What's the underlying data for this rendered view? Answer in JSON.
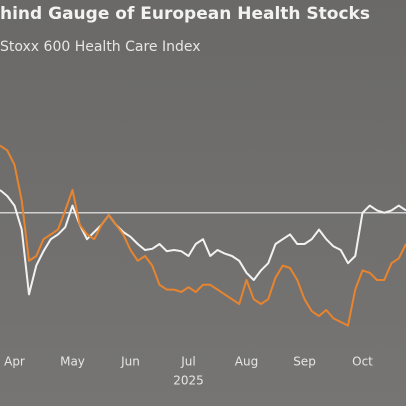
{
  "chart_data": {
    "type": "line",
    "title": "hind Gauge of European Health Stocks",
    "subtitle": "Stoxx 600 Health Care Index",
    "xlabel": "2025",
    "categories": [
      null,
      null,
      "Apr",
      null,
      null,
      null,
      null,
      null,
      null,
      null,
      "May",
      null,
      null,
      null,
      null,
      null,
      null,
      null,
      "Jun",
      null,
      null,
      null,
      null,
      null,
      null,
      null,
      "Jul",
      null,
      null,
      null,
      null,
      null,
      null,
      null,
      "Aug",
      null,
      null,
      null,
      null,
      null,
      null,
      null,
      "Sep",
      null,
      null,
      null,
      null,
      null,
      null,
      null,
      "Oct",
      null,
      null,
      null,
      null,
      null,
      null
    ],
    "ylim": [
      0,
      100
    ],
    "reference": 53,
    "reference_color": "#f2f2f2",
    "series": [
      {
        "color": "#f2f2f2",
        "values": [
          62.5,
          60,
          56,
          46,
          19,
          31,
          37,
          42,
          44,
          47,
          56,
          48,
          42,
          45,
          48,
          52,
          48,
          45,
          43,
          40,
          37.5,
          38,
          40,
          37,
          37.5,
          37,
          35,
          40,
          42,
          35,
          37.5,
          36,
          35,
          33,
          28,
          25,
          29,
          32,
          40,
          42,
          44,
          40,
          40,
          42,
          46,
          42,
          39,
          37.5,
          32,
          35,
          53,
          56,
          54,
          53,
          54,
          56,
          54
        ]
      },
      {
        "color": "#e8842e",
        "values": [
          81,
          79,
          73,
          58,
          33,
          35,
          42,
          44,
          46,
          54,
          62.5,
          48,
          44,
          42,
          48,
          52,
          48,
          44,
          37.5,
          33,
          35,
          31,
          23,
          21,
          21,
          20,
          22,
          20,
          23,
          23,
          21,
          19,
          17,
          15,
          25,
          17,
          15,
          17,
          26,
          31,
          30,
          25,
          17,
          12,
          10,
          12.5,
          9,
          7.5,
          6,
          21,
          29,
          28,
          25,
          25,
          32,
          34,
          40
        ]
      }
    ]
  }
}
